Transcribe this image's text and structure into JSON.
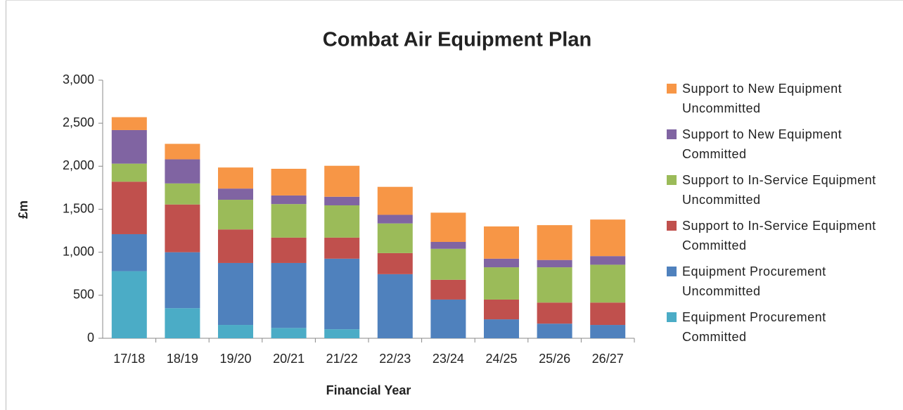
{
  "chart_data": {
    "type": "stacked_bar",
    "title": "Combat Air Equipment Plan",
    "x_label": "Financial Year",
    "y_label": "£m",
    "categories": [
      "17/18",
      "18/19",
      "19/20",
      "20/21",
      "21/22",
      "22/23",
      "23/24",
      "24/25",
      "25/26",
      "26/27"
    ],
    "series": [
      {
        "name": "Equipment Procurement Committed",
        "color": "#4BACC6",
        "values": [
          780,
          350,
          155,
          120,
          105,
          0,
          0,
          0,
          0,
          0
        ]
      },
      {
        "name": "Equipment Procurement Uncommitted",
        "color": "#4F81BD",
        "values": [
          430,
          650,
          720,
          755,
          820,
          745,
          450,
          220,
          170,
          155
        ]
      },
      {
        "name": "Support to In-Service Equipment Committed",
        "color": "#C0504D",
        "values": [
          610,
          555,
          390,
          295,
          245,
          245,
          230,
          230,
          245,
          260
        ]
      },
      {
        "name": "Support to In-Service Equipment Uncommitted",
        "color": "#9BBB59",
        "values": [
          210,
          245,
          345,
          390,
          375,
          345,
          360,
          375,
          410,
          440
        ]
      },
      {
        "name": "Support to New Equipment Committed",
        "color": "#8064A2",
        "values": [
          390,
          280,
          130,
          100,
          100,
          100,
          80,
          100,
          85,
          100
        ]
      },
      {
        "name": "Support to New Equipment Uncommitted",
        "color": "#F79646",
        "values": [
          150,
          180,
          245,
          310,
          360,
          325,
          340,
          375,
          405,
          425
        ]
      }
    ],
    "ylim": [
      0,
      3000
    ],
    "yticks": [
      0,
      500,
      {
        "value": 1000,
        "label": "1,000"
      },
      {
        "value": 1500,
        "label": "1,500"
      },
      {
        "value": 2000,
        "label": "2,000"
      },
      {
        "value": 2500,
        "label": "2,500"
      },
      {
        "value": 3000,
        "label": "3,000"
      }
    ],
    "grid": false,
    "legend": "right"
  }
}
